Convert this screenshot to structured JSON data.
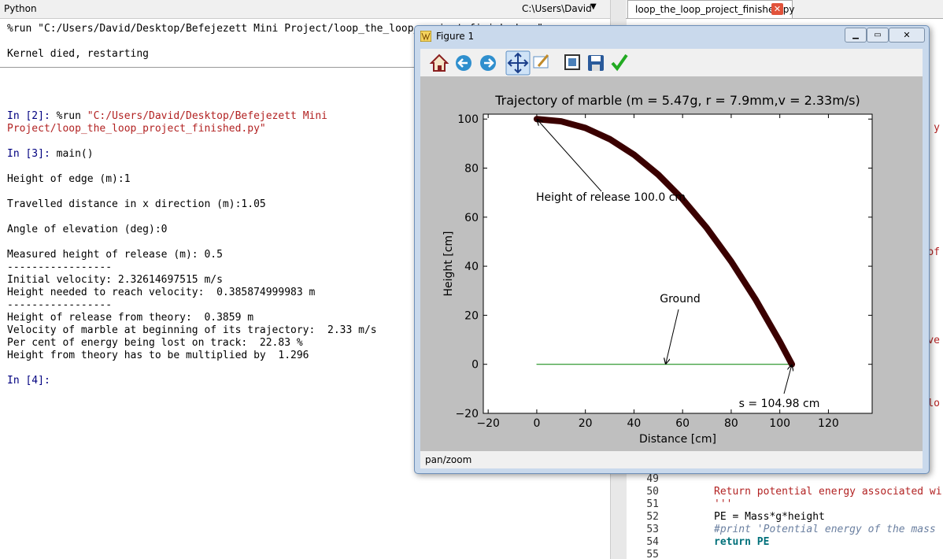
{
  "console": {
    "pane_title": "Python",
    "working_dir": "C:\\Users\\David",
    "head": [
      [
        {
          "text": "%run \"C:/Users/David/Desktop/Befejezett Mini Project/loop_the_loop_project_finished.py\""
        }
      ],
      [
        {
          "text": "Kernel died, restarting"
        }
      ]
    ],
    "blocks": [
      [
        {
          "prompt": "In [2]:",
          "text": " %run ",
          "string": "\"C:/Users/David/Desktop/Befejezett Mini"
        },
        {
          "string": "Project/loop_the_loop_project_finished.py\""
        }
      ],
      [
        {
          "prompt": "In [3]:",
          "text": " main()"
        }
      ],
      [
        {
          "text": "Height of edge (m):1"
        }
      ],
      [
        {
          "text": "Travelled distance in x direction (m):1.05"
        }
      ],
      [
        {
          "text": "Angle of elevation (deg):0"
        }
      ],
      [
        {
          "text": "Measured height of release (m): 0.5"
        },
        {
          "text": "-----------------"
        },
        {
          "text": "Initial velocity: 2.32614697515 m/s"
        },
        {
          "text": "Height needed to reach velocity:  0.385874999983 m"
        },
        {
          "text": "-----------------"
        },
        {
          "text": "Height of release from theory:  0.3859 m"
        },
        {
          "text": "Velocity of marble at beginning of its trajectory:  2.33 m/s"
        },
        {
          "text": "Per cent of energy being lost on track:  22.83 %"
        },
        {
          "text": "Height from theory has to be multiplied by  1.296"
        }
      ],
      [
        {
          "prompt": "In [4]:"
        }
      ]
    ]
  },
  "editor": {
    "tab": "loop_the_loop_project_finished.py",
    "fragments": [
      "y",
      "of",
      "ive",
      "lo"
    ],
    "lines": [
      {
        "number": 49
      },
      {
        "number": 50,
        "code": "Return potential energy associated wi"
      },
      {
        "number": 51,
        "code": "'''"
      },
      {
        "number": 52,
        "code": "PE = Mass*g*height"
      },
      {
        "number": 53,
        "code": "#print 'Potential energy of the mass"
      },
      {
        "number": 54,
        "code": "return PE"
      },
      {
        "number": 55
      }
    ]
  },
  "figure": {
    "window_title": "Figure 1",
    "status": "pan/zoom"
  },
  "chart_data": {
    "type": "line",
    "title": "Trajectory of marble (m = 5.47g, r = 7.9mm,v = 2.33m/s)",
    "xlabel": "Distance [cm]",
    "ylabel": "Height [cm]",
    "xlim": [
      -22,
      138
    ],
    "ylim": [
      -20,
      102
    ],
    "xticks": [
      {
        "value": -20,
        "label": "−20"
      },
      0,
      20,
      40,
      60,
      80,
      100,
      120
    ],
    "yticks": [
      {
        "value": -20,
        "label": "−20"
      },
      0,
      20,
      40,
      60,
      80,
      100
    ],
    "series": [
      {
        "color": "#3a0000",
        "x": [
          0,
          10,
          20,
          30,
          40,
          50,
          60,
          70,
          80,
          90,
          100,
          104.98
        ],
        "values": [
          100,
          99.09,
          96.37,
          91.83,
          85.48,
          77.32,
          67.33,
          55.54,
          41.93,
          26.5,
          9.26,
          0
        ]
      },
      {
        "color": "#008000",
        "x": [
          0,
          104.98
        ],
        "values": [
          0,
          0
        ]
      }
    ],
    "annotations": [
      {
        "text": "Height of release 100.0 cm",
        "xy": [
          0,
          100
        ]
      },
      {
        "text": "Ground",
        "xy": [
          53,
          0
        ]
      },
      {
        "text": "s = 104.98 cm",
        "xy": [
          104.98,
          0
        ]
      }
    ]
  }
}
